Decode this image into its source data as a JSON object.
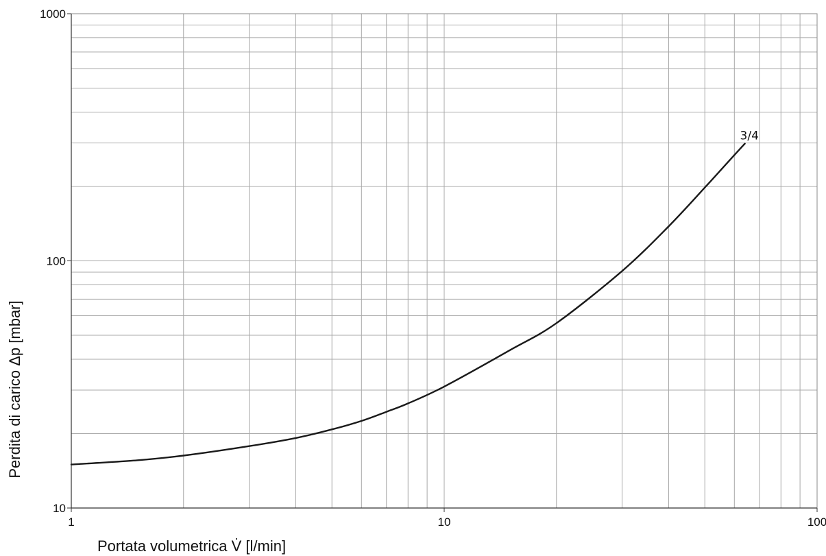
{
  "chart_data": {
    "type": "line",
    "xlabel": "Portata volumetrica V̇ [l/min]",
    "ylabel": "Perdita di carico Δp [mbar]",
    "xscale": "log",
    "yscale": "log",
    "xlim": [
      1,
      100
    ],
    "ylim": [
      10,
      1000
    ],
    "x_ticks": [
      "1",
      "10",
      "100"
    ],
    "y_ticks": [
      "10",
      "100",
      "1000"
    ],
    "grid": true,
    "series": [
      {
        "name": "3/4",
        "color": "#1a1a1a",
        "x": [
          1,
          1.5,
          2,
          3,
          4,
          5,
          6,
          7,
          8,
          10,
          15,
          20,
          30,
          40,
          50,
          60,
          64
        ],
        "y": [
          15,
          15.6,
          16.3,
          17.8,
          19.2,
          20.8,
          22.5,
          24.5,
          26.5,
          31,
          43.5,
          56,
          91,
          138,
          198,
          268,
          298
        ]
      }
    ]
  }
}
